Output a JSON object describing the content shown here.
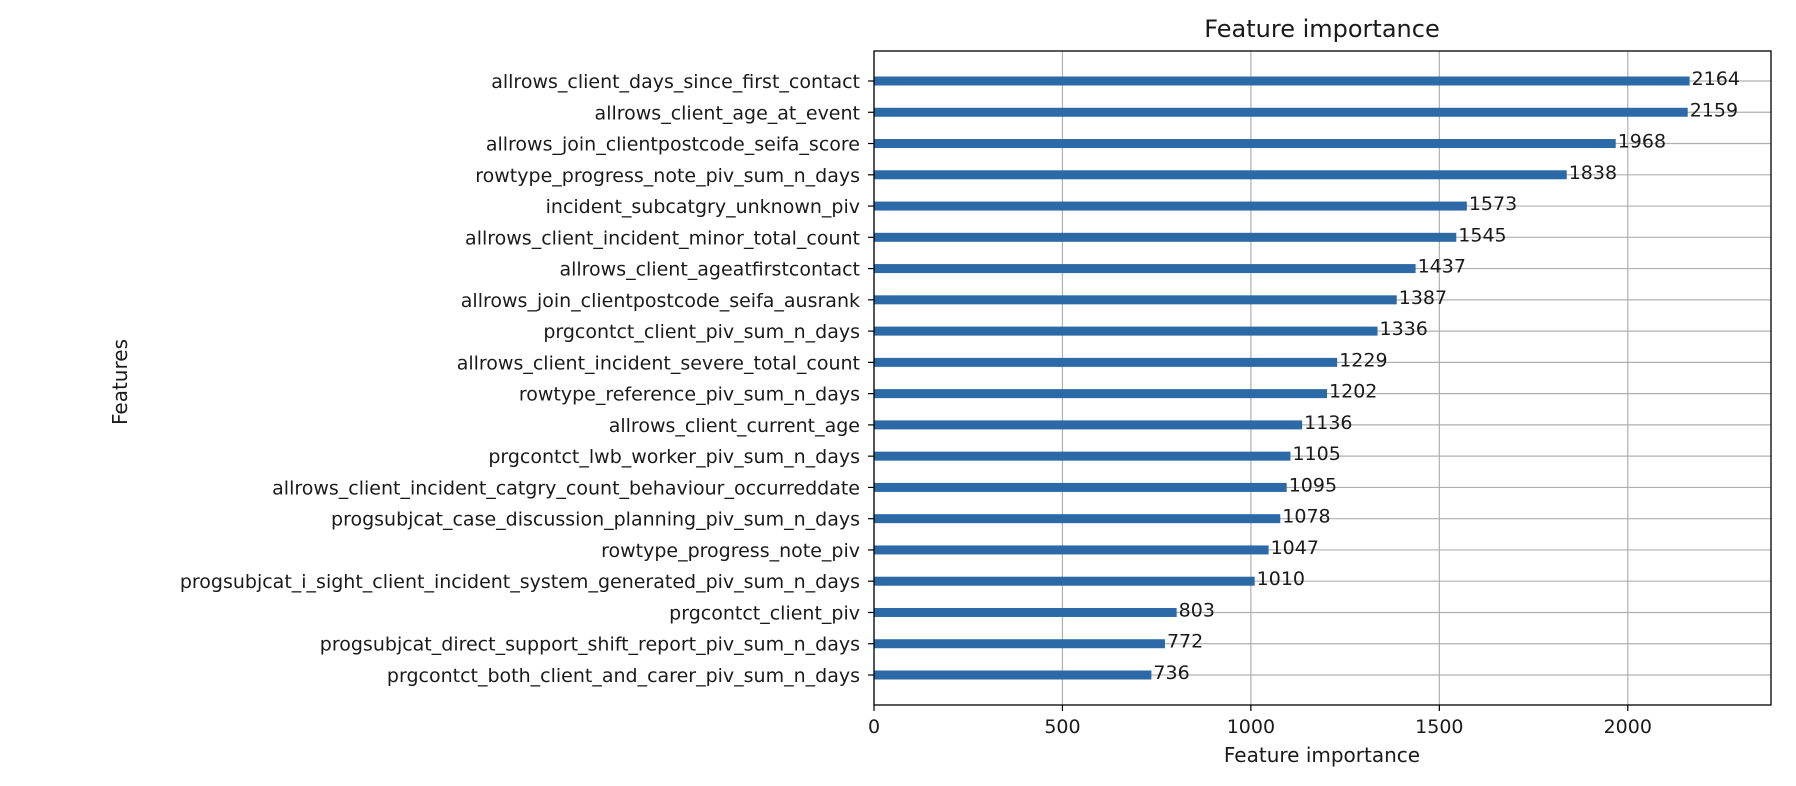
{
  "chart_data": {
    "type": "bar",
    "orientation": "horizontal",
    "title": "Feature importance",
    "xlabel": "Feature importance",
    "ylabel": "Features",
    "xlim": [
      0,
      2380
    ],
    "xticks": [
      0,
      500,
      1000,
      1500,
      2000
    ],
    "grid": true,
    "bar_color": "#2b6aa6",
    "categories": [
      "allrows_client_days_since_first_contact",
      "allrows_client_age_at_event",
      "allrows_join_clientpostcode_seifa_score",
      "rowtype_progress_note_piv_sum_n_days",
      "incident_subcatgry_unknown_piv",
      "allrows_client_incident_minor_total_count",
      "allrows_client_ageatfirstcontact",
      "allrows_join_clientpostcode_seifa_ausrank",
      "prgcontct_client_piv_sum_n_days",
      "allrows_client_incident_severe_total_count",
      "rowtype_reference_piv_sum_n_days",
      "allrows_client_current_age",
      "prgcontct_lwb_worker_piv_sum_n_days",
      "allrows_client_incident_catgry_count_behaviour_occurreddate",
      "progsubjcat_case_discussion_planning_piv_sum_n_days",
      "rowtype_progress_note_piv",
      "progsubjcat_i_sight_client_incident_system_generated_piv_sum_n_days",
      "prgcontct_client_piv",
      "progsubjcat_direct_support_shift_report_piv_sum_n_days",
      "prgcontct_both_client_and_carer_piv_sum_n_days"
    ],
    "values": [
      2164,
      2159,
      1968,
      1838,
      1573,
      1545,
      1437,
      1387,
      1336,
      1229,
      1202,
      1136,
      1105,
      1095,
      1078,
      1047,
      1010,
      803,
      772,
      736
    ]
  }
}
